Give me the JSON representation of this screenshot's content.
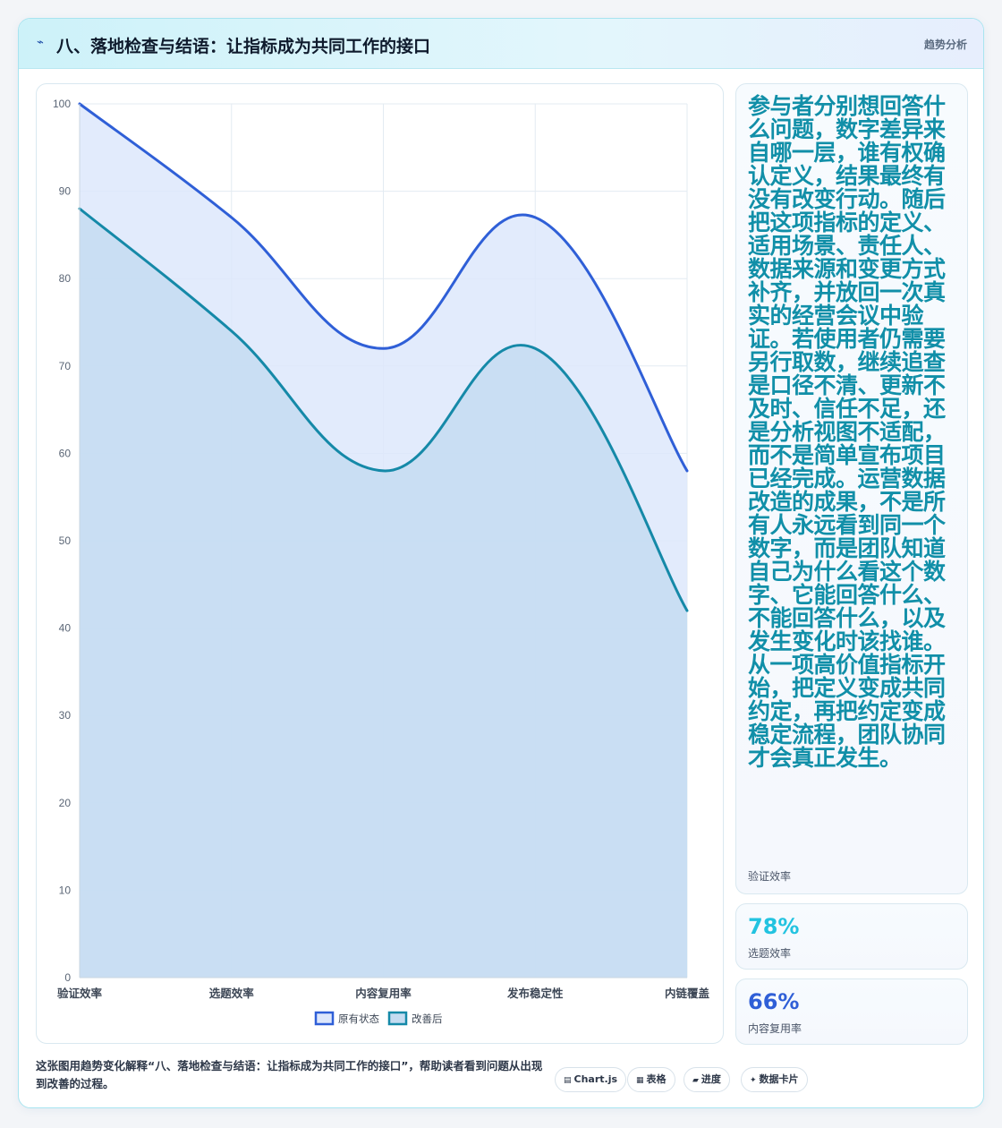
{
  "header": {
    "title": "八、落地检查与结语：让指标成为共同工作的接口",
    "tag": "趋势分析",
    "icon": "pulse-icon"
  },
  "chart_data": {
    "type": "area",
    "categories": [
      "验证效率",
      "选题效率",
      "内容复用率",
      "发布稳定性",
      "内链覆盖"
    ],
    "series": [
      {
        "name": "原有状态",
        "values": [
          100,
          87,
          72,
          87,
          58
        ],
        "color": "#2f5fd7",
        "fill": "#dde7fb"
      },
      {
        "name": "改善后",
        "values": [
          88,
          74,
          58,
          72,
          42
        ],
        "color": "#1589a8",
        "fill": "#c4dcf1"
      }
    ],
    "ylim": [
      0,
      100
    ],
    "yticks": [
      0,
      10,
      20,
      30,
      40,
      50,
      60,
      70,
      80,
      90,
      100
    ],
    "grid": true,
    "legend": "bottom"
  },
  "side": {
    "big_text": "参与者分别想回答什么问题，数字差异来自哪一层，谁有权确认定义，结果最终有没有改变行动。随后把这项指标的定义、适用场景、责任人、数据来源和变更方式补齐，并放回一次真实的经营会议中验证。若使用者仍需要另行取数，继续追查是口径不清、更新不及时、信任不足，还是分析视图不适配，而不是简单宣布项目已经完成。运营数据改造的成果，不是所有人永远看到同一个数字，而是团队知道自己为什么看这个数字、它能回答什么、不能回答什么，以及发生变化时该找谁。从一项高价值指标开始，把定义变成共同约定，再把约定变成稳定流程，团队协同才会真正发生。",
    "big_label": "验证效率",
    "metrics": [
      {
        "value": "78%",
        "label": "选题效率",
        "color": "#22c3e0"
      },
      {
        "value": "66%",
        "label": "内容复用率",
        "color": "#2f5fd7"
      }
    ]
  },
  "footer": {
    "text": "这张图用趋势变化解释“八、落地检查与结语：让指标成为共同工作的接口”，帮助读者看到问题从出现到改善的过程。",
    "pills": [
      {
        "label": "Chart.js",
        "icon": "chart-icon",
        "glyph": "▤"
      },
      {
        "label": "表格",
        "icon": "table-icon",
        "glyph": "▦"
      },
      {
        "label": "进度",
        "icon": "progress-icon",
        "glyph": "▰"
      },
      {
        "label": "数据卡片",
        "icon": "card-icon",
        "glyph": "✦"
      }
    ]
  }
}
